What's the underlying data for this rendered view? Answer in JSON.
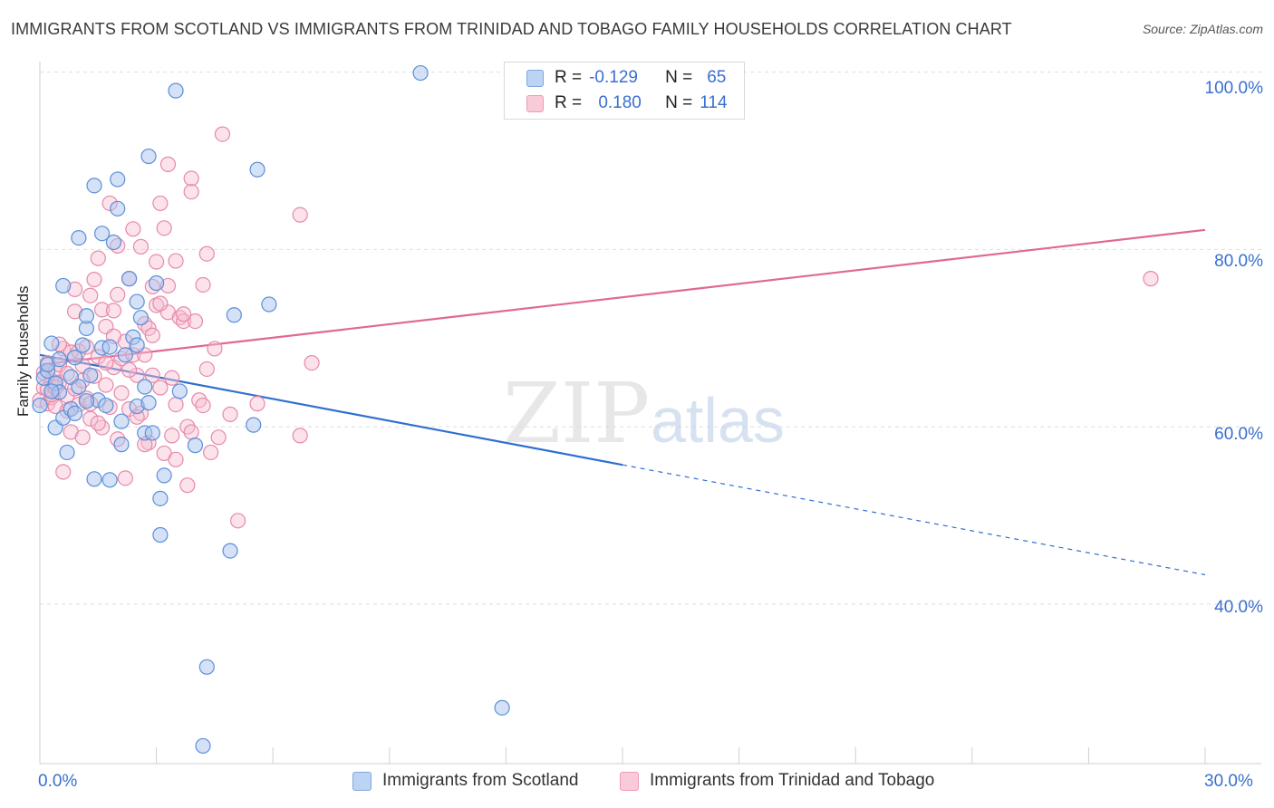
{
  "header": {
    "title": "IMMIGRANTS FROM SCOTLAND VS IMMIGRANTS FROM TRINIDAD AND TOBAGO FAMILY HOUSEHOLDS CORRELATION CHART",
    "source": "Source: ZipAtlas.com"
  },
  "watermark": {
    "zip": "ZIP",
    "atlas": "atlas"
  },
  "legend": {
    "r_label": "R =",
    "n_label": "N =",
    "rows": [
      {
        "r": "-0.129",
        "n": "65",
        "color": "#a9c4ee"
      },
      {
        "r": "0.180",
        "n": "114",
        "color": "#f4b7cb"
      }
    ]
  },
  "colors": {
    "blue_fill": "#a9c4ee",
    "blue_stroke": "#5b8fd9",
    "blue_line": "#2f6fd0",
    "pink_fill": "#f6bfd2",
    "pink_stroke": "#e68aa9",
    "pink_line": "#e06894",
    "tick_text": "#3a6fcf"
  },
  "chart_data": {
    "type": "scatter",
    "title": "IMMIGRANTS FROM SCOTLAND VS IMMIGRANTS FROM TRINIDAD AND TOBAGO FAMILY HOUSEHOLDS CORRELATION CHART",
    "xlabel": "",
    "ylabel": "Family Households",
    "xlim": [
      0,
      30
    ],
    "ylim": [
      22,
      102
    ],
    "x_tick_labels": [
      "0.0%",
      "30.0%"
    ],
    "y_ticks": [
      40,
      60,
      80,
      100
    ],
    "y_tick_labels": [
      "40.0%",
      "60.0%",
      "80.0%",
      "100.0%"
    ],
    "grid": true,
    "legend_position": "top-center",
    "series": [
      {
        "name": "Immigrants from Scotland",
        "trend": {
          "x0": 0,
          "y0": 68.1,
          "x1": 15,
          "y1": 55.7,
          "dash_to_x": 30,
          "dash_to_y": 43.3
        },
        "points": [
          [
            0.0,
            62.4
          ],
          [
            0.1,
            65.5
          ],
          [
            0.2,
            66.3
          ],
          [
            0.2,
            67.0
          ],
          [
            0.3,
            69.4
          ],
          [
            0.4,
            59.9
          ],
          [
            0.4,
            64.9
          ],
          [
            0.5,
            67.6
          ],
          [
            0.5,
            63.9
          ],
          [
            0.6,
            61.0
          ],
          [
            0.6,
            75.9
          ],
          [
            0.7,
            57.1
          ],
          [
            0.8,
            62.0
          ],
          [
            0.8,
            65.6
          ],
          [
            0.9,
            67.8
          ],
          [
            1.0,
            64.5
          ],
          [
            1.0,
            81.3
          ],
          [
            1.1,
            69.2
          ],
          [
            1.2,
            71.1
          ],
          [
            1.2,
            72.5
          ],
          [
            1.3,
            65.8
          ],
          [
            1.4,
            87.2
          ],
          [
            1.4,
            54.1
          ],
          [
            1.5,
            63.0
          ],
          [
            1.6,
            68.9
          ],
          [
            1.6,
            81.8
          ],
          [
            1.7,
            62.4
          ],
          [
            1.8,
            54.0
          ],
          [
            1.8,
            69.0
          ],
          [
            1.9,
            80.8
          ],
          [
            2.0,
            87.9
          ],
          [
            2.0,
            84.6
          ],
          [
            2.1,
            58.0
          ],
          [
            2.1,
            60.6
          ],
          [
            2.2,
            68.1
          ],
          [
            2.3,
            76.7
          ],
          [
            2.4,
            70.1
          ],
          [
            2.5,
            74.1
          ],
          [
            2.5,
            69.2
          ],
          [
            2.5,
            62.3
          ],
          [
            2.6,
            72.3
          ],
          [
            2.7,
            59.3
          ],
          [
            2.7,
            64.5
          ],
          [
            2.8,
            62.7
          ],
          [
            2.9,
            59.3
          ],
          [
            2.8,
            90.5
          ],
          [
            3.0,
            76.2
          ],
          [
            3.1,
            51.9
          ],
          [
            3.1,
            47.8
          ],
          [
            3.2,
            54.5
          ],
          [
            3.5,
            97.9
          ],
          [
            4.0,
            57.9
          ],
          [
            4.3,
            32.9
          ],
          [
            4.2,
            24.0
          ],
          [
            4.9,
            46.0
          ],
          [
            5.0,
            72.6
          ],
          [
            5.5,
            60.2
          ],
          [
            5.6,
            89.0
          ],
          [
            5.9,
            73.8
          ],
          [
            9.8,
            99.9
          ],
          [
            11.9,
            28.3
          ],
          [
            1.2,
            62.9
          ],
          [
            0.9,
            61.5
          ],
          [
            0.3,
            64.0
          ],
          [
            3.6,
            64.0
          ]
        ]
      },
      {
        "name": "Immigrants from Trinidad and Tobago",
        "trend": {
          "x0": 0,
          "y0": 67.0,
          "x1": 30,
          "y1": 82.2
        },
        "points": [
          [
            0.0,
            63.0
          ],
          [
            0.1,
            64.4
          ],
          [
            0.1,
            66.1
          ],
          [
            0.2,
            62.6
          ],
          [
            0.2,
            67.2
          ],
          [
            0.3,
            65.2
          ],
          [
            0.3,
            63.3
          ],
          [
            0.4,
            66.3
          ],
          [
            0.4,
            62.3
          ],
          [
            0.5,
            65.0
          ],
          [
            0.5,
            67.0
          ],
          [
            0.6,
            54.9
          ],
          [
            0.6,
            68.8
          ],
          [
            0.7,
            66.0
          ],
          [
            0.7,
            63.5
          ],
          [
            0.8,
            68.4
          ],
          [
            0.8,
            59.4
          ],
          [
            0.9,
            75.5
          ],
          [
            0.9,
            73.0
          ],
          [
            1.0,
            62.5
          ],
          [
            1.0,
            68.5
          ],
          [
            1.1,
            66.9
          ],
          [
            1.1,
            58.8
          ],
          [
            1.2,
            63.2
          ],
          [
            1.2,
            69.0
          ],
          [
            1.3,
            74.8
          ],
          [
            1.3,
            60.9
          ],
          [
            1.4,
            65.7
          ],
          [
            1.4,
            76.6
          ],
          [
            1.5,
            79.0
          ],
          [
            1.5,
            67.9
          ],
          [
            1.6,
            73.2
          ],
          [
            1.6,
            59.9
          ],
          [
            1.7,
            64.7
          ],
          [
            1.7,
            71.3
          ],
          [
            1.8,
            85.2
          ],
          [
            1.8,
            62.2
          ],
          [
            1.9,
            73.1
          ],
          [
            1.9,
            66.7
          ],
          [
            2.0,
            80.4
          ],
          [
            2.0,
            74.9
          ],
          [
            2.0,
            58.6
          ],
          [
            2.1,
            67.7
          ],
          [
            2.2,
            69.6
          ],
          [
            2.2,
            54.2
          ],
          [
            2.3,
            76.7
          ],
          [
            2.3,
            62.0
          ],
          [
            2.4,
            82.3
          ],
          [
            2.4,
            68.1
          ],
          [
            2.5,
            65.8
          ],
          [
            2.6,
            80.3
          ],
          [
            2.6,
            61.5
          ],
          [
            2.7,
            71.6
          ],
          [
            2.7,
            68.1
          ],
          [
            2.8,
            58.2
          ],
          [
            2.8,
            71.1
          ],
          [
            2.9,
            75.8
          ],
          [
            2.9,
            65.8
          ],
          [
            3.0,
            73.7
          ],
          [
            3.0,
            78.6
          ],
          [
            3.1,
            85.2
          ],
          [
            3.1,
            64.4
          ],
          [
            3.2,
            82.4
          ],
          [
            3.2,
            57.0
          ],
          [
            3.3,
            89.6
          ],
          [
            3.3,
            72.9
          ],
          [
            3.4,
            65.5
          ],
          [
            3.4,
            59.0
          ],
          [
            3.5,
            78.7
          ],
          [
            3.5,
            56.3
          ],
          [
            3.6,
            72.3
          ],
          [
            3.7,
            71.9
          ],
          [
            3.8,
            60.0
          ],
          [
            3.8,
            53.4
          ],
          [
            3.9,
            88.0
          ],
          [
            3.9,
            86.5
          ],
          [
            4.0,
            71.9
          ],
          [
            4.1,
            63.0
          ],
          [
            4.2,
            76.0
          ],
          [
            4.2,
            62.4
          ],
          [
            4.3,
            79.5
          ],
          [
            4.3,
            66.5
          ],
          [
            4.4,
            57.1
          ],
          [
            4.5,
            68.8
          ],
          [
            4.6,
            58.8
          ],
          [
            4.7,
            93.0
          ],
          [
            4.9,
            61.4
          ],
          [
            5.1,
            49.4
          ],
          [
            5.6,
            62.6
          ],
          [
            6.7,
            83.9
          ],
          [
            6.7,
            59.0
          ],
          [
            7.0,
            67.2
          ],
          [
            28.6,
            76.7
          ],
          [
            0.3,
            63.6
          ],
          [
            0.5,
            69.3
          ],
          [
            0.7,
            61.8
          ],
          [
            0.9,
            64.3
          ],
          [
            1.1,
            65.2
          ],
          [
            1.3,
            62.6
          ],
          [
            1.5,
            60.4
          ],
          [
            1.7,
            67.2
          ],
          [
            1.9,
            70.2
          ],
          [
            2.1,
            63.8
          ],
          [
            2.3,
            66.4
          ],
          [
            2.5,
            61.1
          ],
          [
            2.7,
            58.0
          ],
          [
            2.9,
            70.3
          ],
          [
            3.1,
            73.9
          ],
          [
            3.3,
            75.9
          ],
          [
            3.5,
            62.5
          ],
          [
            3.7,
            72.7
          ],
          [
            3.9,
            59.4
          ],
          [
            0.2,
            64.2
          ],
          [
            0.4,
            64.4
          ]
        ]
      }
    ]
  },
  "bottom_legend": [
    {
      "label": "Immigrants from Scotland"
    },
    {
      "label": "Immigrants from Trinidad and Tobago"
    }
  ]
}
